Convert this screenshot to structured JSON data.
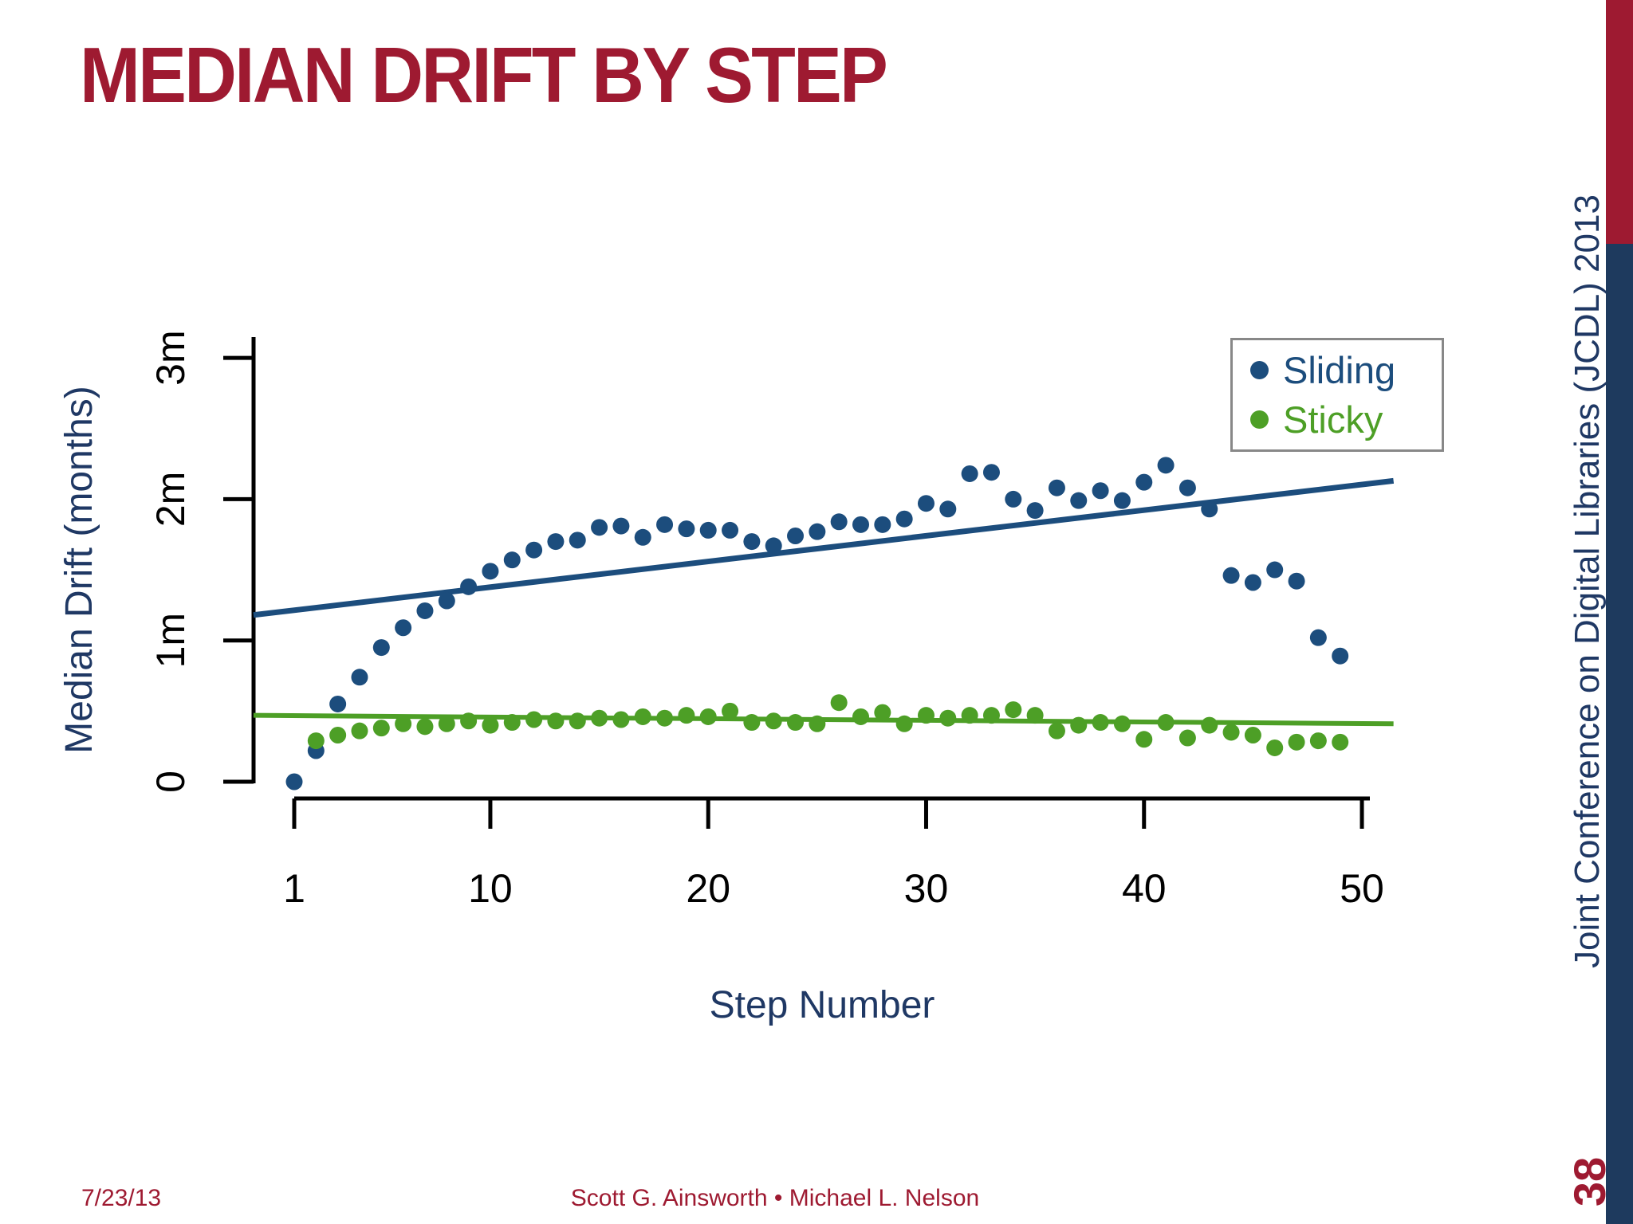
{
  "slide": {
    "title": "MEDIAN DRIFT BY STEP",
    "footer_date": "7/23/13",
    "footer_authors": "Scott G. Ainsworth • Michael L. Nelson",
    "sidebar_text": "Joint Conference on Digital Libraries (JCDL) 2013",
    "page_number": "38"
  },
  "colors": {
    "title_maroon": "#9e1a31",
    "navy_text": "#1f3864",
    "navy_bar": "#1e3a5e",
    "red_bar": "#9e1a31",
    "sliding_blue": "#1c4d7d",
    "sticky_green": "#4d9f26",
    "axis_black": "#000000",
    "legend_border": "#888888"
  },
  "chart_data": {
    "type": "scatter",
    "title": "",
    "xlabel": "Step Number",
    "ylabel": "Median Drift (months)",
    "x_ticks": [
      1,
      10,
      20,
      30,
      40,
      50
    ],
    "y_ticks": [
      "0",
      "1m",
      "2m",
      "3m"
    ],
    "y_tick_values": [
      0,
      1,
      2,
      3
    ],
    "xlim": [
      -1,
      52
    ],
    "ylim": [
      0,
      3.1
    ],
    "grid": false,
    "legend_position": "top-right",
    "series": [
      {
        "name": "Sliding",
        "color": "#1c4d7d",
        "marker": "circle",
        "x": [
          1,
          2,
          3,
          4,
          5,
          6,
          7,
          8,
          9,
          10,
          11,
          12,
          13,
          14,
          15,
          16,
          17,
          18,
          19,
          20,
          21,
          22,
          23,
          24,
          25,
          26,
          27,
          28,
          29,
          30,
          31,
          32,
          33,
          34,
          35,
          36,
          37,
          38,
          39,
          40,
          41,
          42,
          43,
          44,
          45,
          46,
          47,
          48,
          49
        ],
        "y": [
          0.0,
          0.22,
          0.55,
          0.74,
          0.95,
          1.09,
          1.21,
          1.28,
          1.38,
          1.49,
          1.57,
          1.64,
          1.7,
          1.71,
          1.8,
          1.81,
          1.73,
          1.82,
          1.79,
          1.78,
          1.78,
          1.7,
          1.67,
          1.74,
          1.77,
          1.84,
          1.82,
          1.82,
          1.86,
          1.97,
          1.93,
          2.18,
          2.19,
          2.0,
          1.92,
          2.08,
          1.99,
          2.06,
          1.99,
          2.12,
          2.24,
          2.08,
          1.93,
          1.46,
          1.41,
          1.5,
          1.42,
          1.02,
          0.89
        ]
      },
      {
        "name": "Sticky",
        "color": "#4d9f26",
        "marker": "circle",
        "x": [
          2,
          3,
          4,
          5,
          6,
          7,
          8,
          9,
          10,
          11,
          12,
          13,
          14,
          15,
          16,
          17,
          18,
          19,
          20,
          21,
          22,
          23,
          24,
          25,
          26,
          27,
          28,
          29,
          30,
          31,
          32,
          33,
          34,
          35,
          36,
          37,
          38,
          39,
          40,
          41,
          42,
          43,
          44,
          45,
          46,
          47,
          48,
          49
        ],
        "y": [
          0.29,
          0.33,
          0.36,
          0.38,
          0.41,
          0.39,
          0.41,
          0.43,
          0.4,
          0.42,
          0.44,
          0.43,
          0.43,
          0.45,
          0.44,
          0.46,
          0.45,
          0.47,
          0.46,
          0.5,
          0.42,
          0.43,
          0.42,
          0.41,
          0.56,
          0.46,
          0.49,
          0.41,
          0.47,
          0.45,
          0.47,
          0.47,
          0.51,
          0.47,
          0.36,
          0.4,
          0.42,
          0.41,
          0.3,
          0.42,
          0.31,
          0.4,
          0.35,
          0.33,
          0.24,
          0.28,
          0.29,
          0.28
        ]
      }
    ],
    "trend_lines": [
      {
        "name": "Sliding trend",
        "color": "#1c4d7d",
        "from_step": -0.87,
        "from_value": 1.18,
        "to_step": 51.45,
        "to_value": 2.13,
        "width": 7
      },
      {
        "name": "Sticky trend",
        "color": "#4d9f26",
        "from_step": -0.87,
        "from_value": 0.47,
        "to_step": 51.45,
        "to_value": 0.41,
        "width": 6
      }
    ]
  }
}
